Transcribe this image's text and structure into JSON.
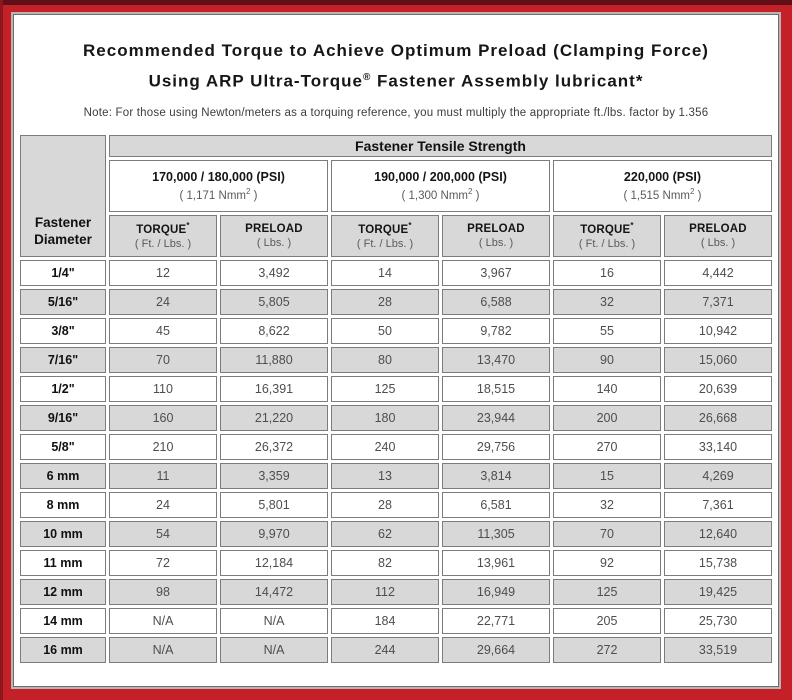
{
  "title": {
    "line1": "Recommended Torque to Achieve Optimum Preload (Clamping Force)",
    "line2_before": "Using ARP Ultra-Torque",
    "line2_sup": "®",
    "line2_after": " Fastener Assembly lubricant*"
  },
  "note": "Note: For those using Newton/meters as a torquing reference, you must multiply the appropriate ft./lbs. factor by 1.356",
  "colors": {
    "frame_red": "#c32127",
    "frame_dark_strip": "#5e1016",
    "cell_shade_gray": "#d8d8d8",
    "cell_border_gray": "#7d7b7b"
  },
  "table": {
    "corner": "Fastener Diameter",
    "tensile_header": "Fastener Tensile Strength",
    "groups": [
      {
        "psi": "170,000 / 180,000 (PSI)",
        "nmm_before": "( 1,171 Nmm",
        "nmm_sup": "2",
        "nmm_after": " )"
      },
      {
        "psi": "190,000 / 200,000 (PSI)",
        "nmm_before": "( 1,300 Nmm",
        "nmm_sup": "2",
        "nmm_after": " )"
      },
      {
        "psi": "220,000 (PSI)",
        "nmm_before": "( 1,515 Nmm",
        "nmm_sup": "2",
        "nmm_after": " )"
      }
    ],
    "measure_headers": {
      "torque_label": "TORQUE",
      "torque_sup": "*",
      "torque_sub": "( Ft. / Lbs. )",
      "preload_label": "PRELOAD",
      "preload_sub": "( Lbs. )"
    },
    "rows": [
      {
        "dia": "1/4\"",
        "vals": [
          "12",
          "3,492",
          "14",
          "3,967",
          "16",
          "4,442"
        ]
      },
      {
        "dia": "5/16\"",
        "vals": [
          "24",
          "5,805",
          "28",
          "6,588",
          "32",
          "7,371"
        ]
      },
      {
        "dia": "3/8\"",
        "vals": [
          "45",
          "8,622",
          "50",
          "9,782",
          "55",
          "10,942"
        ]
      },
      {
        "dia": "7/16\"",
        "vals": [
          "70",
          "11,880",
          "80",
          "13,470",
          "90",
          "15,060"
        ]
      },
      {
        "dia": "1/2\"",
        "vals": [
          "110",
          "16,391",
          "125",
          "18,515",
          "140",
          "20,639"
        ]
      },
      {
        "dia": "9/16\"",
        "vals": [
          "160",
          "21,220",
          "180",
          "23,944",
          "200",
          "26,668"
        ]
      },
      {
        "dia": "5/8\"",
        "vals": [
          "210",
          "26,372",
          "240",
          "29,756",
          "270",
          "33,140"
        ]
      },
      {
        "dia": "6 mm",
        "vals": [
          "11",
          "3,359",
          "13",
          "3,814",
          "15",
          "4,269"
        ]
      },
      {
        "dia": "8 mm",
        "vals": [
          "24",
          "5,801",
          "28",
          "6,581",
          "32",
          "7,361"
        ]
      },
      {
        "dia": "10 mm",
        "vals": [
          "54",
          "9,970",
          "62",
          "11,305",
          "70",
          "12,640"
        ]
      },
      {
        "dia": "11 mm",
        "vals": [
          "72",
          "12,184",
          "82",
          "13,961",
          "92",
          "15,738"
        ]
      },
      {
        "dia": "12 mm",
        "vals": [
          "98",
          "14,472",
          "112",
          "16,949",
          "125",
          "19,425"
        ]
      },
      {
        "dia": "14 mm",
        "vals": [
          "N/A",
          "N/A",
          "184",
          "22,771",
          "205",
          "25,730"
        ]
      },
      {
        "dia": "16 mm",
        "vals": [
          "N/A",
          "N/A",
          "244",
          "29,664",
          "272",
          "33,519"
        ]
      }
    ]
  }
}
